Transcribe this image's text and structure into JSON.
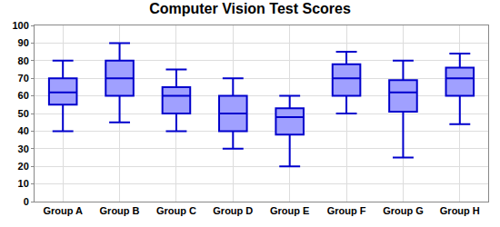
{
  "chart_data": {
    "type": "box",
    "title": "Computer Vision Test Scores",
    "categories": [
      "Group A",
      "Group B",
      "Group C",
      "Group D",
      "Group E",
      "Group F",
      "Group G",
      "Group H"
    ],
    "min": [
      40,
      45,
      40,
      30,
      20,
      50,
      25,
      44
    ],
    "q1": [
      55,
      60,
      50,
      40,
      38,
      60,
      51,
      60
    ],
    "median": [
      62,
      70,
      60,
      50,
      48,
      70,
      62,
      70
    ],
    "q3": [
      70,
      80,
      65,
      60,
      53,
      78,
      69,
      76
    ],
    "max": [
      80,
      90,
      75,
      70,
      60,
      85,
      80,
      84
    ],
    "color": "#0000cc",
    "ylim": [
      0,
      100
    ],
    "yticks": [
      0,
      10,
      20,
      30,
      40,
      50,
      60,
      70,
      80,
      90,
      100
    ],
    "grid": true
  }
}
